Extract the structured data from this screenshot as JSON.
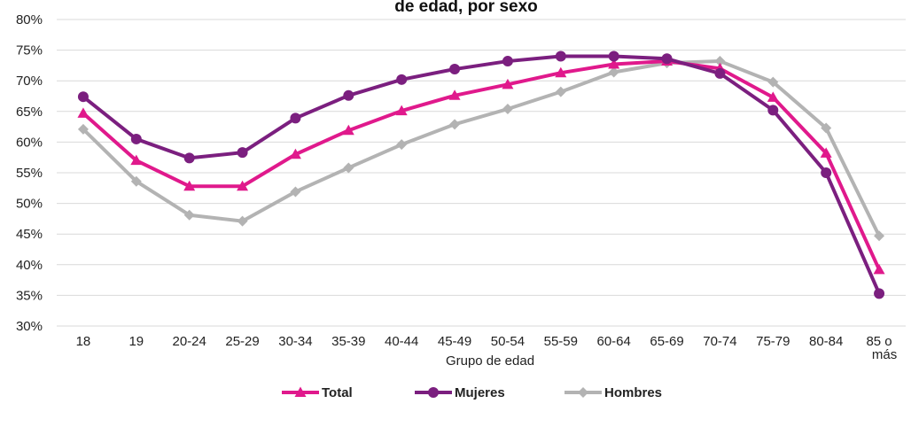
{
  "chart_data": {
    "type": "line",
    "title": "de edad, por sexo",
    "xlabel": "Grupo de edad",
    "ylabel": "",
    "ylim": [
      0.3,
      0.8
    ],
    "y_ticks": [
      "30%",
      "35%",
      "40%",
      "45%",
      "50%",
      "55%",
      "60%",
      "65%",
      "70%",
      "75%",
      "80%"
    ],
    "grid": "horizontal",
    "legend_position": "bottom",
    "categories": [
      "18",
      "19",
      "20-24",
      "25-29",
      "30-34",
      "35-39",
      "40-44",
      "45-49",
      "50-54",
      "55-59",
      "60-64",
      "65-69",
      "70-74",
      "75-79",
      "80-84",
      "85 o más"
    ],
    "series": [
      {
        "name": "Hombres",
        "color": "#b3b3b3",
        "marker": "diamond",
        "values": [
          0.621,
          0.536,
          0.481,
          0.471,
          0.519,
          0.558,
          0.596,
          0.629,
          0.654,
          0.682,
          0.714,
          0.729,
          0.732,
          0.698,
          0.623,
          0.447
        ]
      },
      {
        "name": "Total",
        "color": "#e0198c",
        "marker": "triangle",
        "values": [
          0.647,
          0.57,
          0.528,
          0.528,
          0.58,
          0.619,
          0.651,
          0.676,
          0.694,
          0.713,
          0.727,
          0.732,
          0.72,
          0.673,
          0.582,
          0.392
        ]
      },
      {
        "name": "Mujeres",
        "color": "#7b1f7f",
        "marker": "circle",
        "values": [
          0.674,
          0.605,
          0.574,
          0.583,
          0.639,
          0.676,
          0.702,
          0.719,
          0.732,
          0.74,
          0.74,
          0.736,
          0.712,
          0.652,
          0.55,
          0.353
        ]
      }
    ]
  },
  "legend": {
    "items": [
      {
        "label": "Total",
        "color": "#e0198c",
        "marker": "triangle"
      },
      {
        "label": "Mujeres",
        "color": "#7b1f7f",
        "marker": "circle"
      },
      {
        "label": "Hombres",
        "color": "#b3b3b3",
        "marker": "diamond"
      }
    ]
  }
}
